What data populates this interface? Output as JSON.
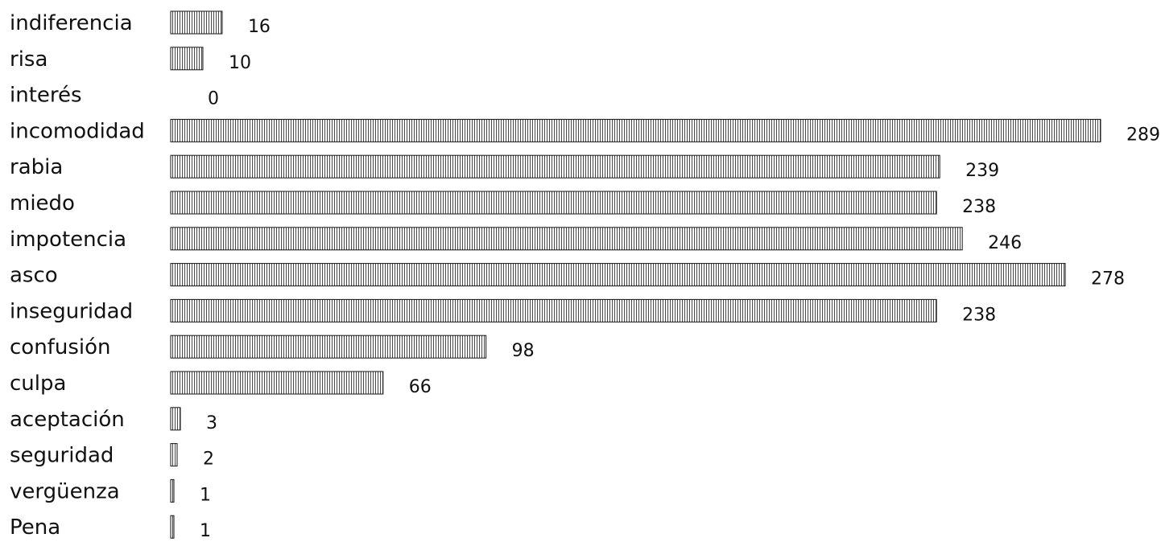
{
  "chart_data": {
    "type": "bar",
    "orientation": "horizontal",
    "categories": [
      "indiferencia",
      "risa",
      "interés",
      "incomodidad",
      "rabia",
      "miedo",
      "impotencia",
      "asco",
      "inseguridad",
      "confusión",
      "culpa",
      "aceptación",
      "seguridad",
      "vergüenza",
      "Pena"
    ],
    "values": [
      16,
      10,
      0,
      289,
      239,
      238,
      246,
      278,
      238,
      98,
      66,
      3,
      2,
      1,
      1
    ],
    "value_labels": [
      "16",
      "10",
      "0",
      "289",
      "239",
      "238",
      "246",
      "278",
      "238",
      "98",
      "66",
      "3",
      "2",
      "1",
      "1"
    ],
    "title": "",
    "xlabel": "",
    "ylabel": "",
    "grid": false,
    "legend": "none",
    "bar_fill": "vertical-hatch",
    "bar_stroke": "#111111"
  }
}
